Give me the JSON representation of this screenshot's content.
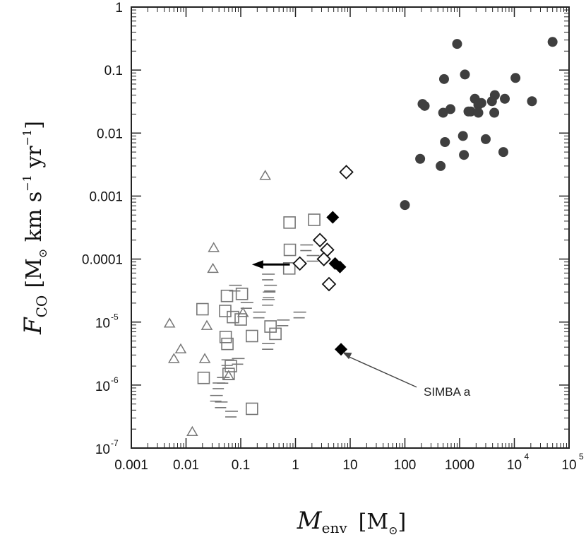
{
  "chart_data": {
    "type": "scatter",
    "title": "",
    "xscale": "log",
    "yscale": "log",
    "xlim": [
      0.001,
      100000
    ],
    "ylim": [
      1e-07,
      1
    ],
    "ylabel_parts": {
      "main": "F",
      "sub": "CO",
      "unit_open": "[M",
      "unit_sun": "⊙",
      "unit_rest": " km s",
      "exp1": "−1",
      "yr": " yr",
      "exp2": "−1",
      "close": "]"
    },
    "xlabel_parts": {
      "main": "M",
      "sub": "env",
      "unit_open": "[M",
      "unit_sun": "⊙",
      "close": "]"
    },
    "x_ticks": [
      {
        "v": 0.001,
        "label": "0.001",
        "sup": ""
      },
      {
        "v": 0.01,
        "label": "0.01",
        "sup": ""
      },
      {
        "v": 0.1,
        "label": "0.1",
        "sup": ""
      },
      {
        "v": 1,
        "label": "1",
        "sup": ""
      },
      {
        "v": 10,
        "label": "10",
        "sup": ""
      },
      {
        "v": 100,
        "label": "100",
        "sup": ""
      },
      {
        "v": 1000,
        "label": "1000",
        "sup": ""
      },
      {
        "v": 10000,
        "label": "10",
        "sup": "4"
      },
      {
        "v": 100000,
        "label": "10",
        "sup": "5"
      }
    ],
    "y_ticks": [
      {
        "v": 1e-07,
        "label": "10",
        "sup": "-7"
      },
      {
        "v": 1e-06,
        "label": "10",
        "sup": "-6"
      },
      {
        "v": 1e-05,
        "label": "10",
        "sup": "-5"
      },
      {
        "v": 0.0001,
        "label": "0.0001",
        "sup": ""
      },
      {
        "v": 0.001,
        "label": "0.001",
        "sup": ""
      },
      {
        "v": 0.01,
        "label": "0.01",
        "sup": ""
      },
      {
        "v": 0.1,
        "label": "0.1",
        "sup": ""
      },
      {
        "v": 1,
        "label": "1",
        "sup": ""
      }
    ],
    "series": [
      {
        "name": "filled circles",
        "marker": "circle-filled",
        "color": "#3f3f3f",
        "points": [
          [
            50000,
            0.28
          ],
          [
            900,
            0.26
          ],
          [
            1250,
            0.085
          ],
          [
            10500,
            0.075
          ],
          [
            520,
            0.072
          ],
          [
            1900,
            0.035
          ],
          [
            4400,
            0.04
          ],
          [
            6700,
            0.035
          ],
          [
            21000,
            0.032
          ],
          [
            2500,
            0.03
          ],
          [
            1600,
            0.022
          ],
          [
            2200,
            0.028
          ],
          [
            3900,
            0.032
          ],
          [
            230,
            0.027
          ],
          [
            210,
            0.029
          ],
          [
            500,
            0.021
          ],
          [
            680,
            0.024
          ],
          [
            1450,
            0.022
          ],
          [
            2200,
            0.021
          ],
          [
            4300,
            0.021
          ],
          [
            1150,
            0.009
          ],
          [
            3000,
            0.008
          ],
          [
            540,
            0.0072
          ],
          [
            1200,
            0.0045
          ],
          [
            450,
            0.003
          ],
          [
            190,
            0.0039
          ],
          [
            6300,
            0.005
          ],
          [
            100,
            0.00072
          ]
        ]
      },
      {
        "name": "open triangles",
        "marker": "triangle-open",
        "color": "#777777",
        "points": [
          [
            0.28,
            0.0021
          ],
          [
            0.032,
            0.00015
          ],
          [
            0.031,
            7e-05
          ],
          [
            0.005,
            9.5e-06
          ],
          [
            0.024,
            8.7e-06
          ],
          [
            0.008,
            3.7e-06
          ],
          [
            0.006,
            2.6e-06
          ],
          [
            0.022,
            2.6e-06
          ],
          [
            0.11,
            1.4e-05
          ],
          [
            0.013,
            1.8e-07
          ],
          [
            0.06,
            1.4e-06
          ]
        ]
      },
      {
        "name": "open squares",
        "marker": "square-open",
        "color": "#777777",
        "points": [
          [
            2.2,
            0.00042
          ],
          [
            0.78,
            0.00038
          ],
          [
            0.79,
            0.00014
          ],
          [
            0.77,
            7.1e-05
          ],
          [
            0.35,
            8.5e-06
          ],
          [
            0.43,
            6.5e-06
          ],
          [
            0.16,
            6e-06
          ],
          [
            0.072,
            1.2e-05
          ],
          [
            0.02,
            1.6e-05
          ],
          [
            0.06,
            1.5e-06
          ],
          [
            0.066,
            2e-06
          ],
          [
            0.021,
            1.3e-06
          ],
          [
            0.16,
            4.2e-07
          ],
          [
            0.1,
            1.1e-05
          ],
          [
            0.105,
            2.8e-05
          ],
          [
            0.056,
            2.6e-05
          ],
          [
            0.052,
            1.5e-05
          ],
          [
            0.053,
            5.8e-06
          ],
          [
            0.057,
            4.5e-06
          ]
        ]
      },
      {
        "name": "open diamonds",
        "marker": "diamond-open",
        "color": "#111111",
        "points": [
          [
            8.5,
            0.0024
          ],
          [
            2.8,
            0.0002
          ],
          [
            3.8,
            0.00014
          ],
          [
            3.3,
            0.0001
          ],
          [
            1.2,
            8.5e-05
          ],
          [
            4.1,
            4e-05
          ]
        ]
      },
      {
        "name": "filled diamonds",
        "marker": "diamond-filled",
        "color": "#000000",
        "points": [
          [
            4.8,
            0.00046
          ],
          [
            5.3,
            8.5e-05
          ],
          [
            6.5,
            7.5e-05
          ],
          [
            6.8,
            3.7e-06
          ]
        ]
      }
    ],
    "upper_limit_arrow": {
      "from": [
        1.0,
        8.2e-05
      ],
      "to": [
        0.16,
        8.2e-05
      ]
    },
    "annotations": [
      {
        "text": "SIMBA a",
        "text_at": [
          220,
          6.8e-07
        ],
        "arrow_to": [
          7.3,
          3.3e-06
        ]
      }
    ],
    "bracket_marks": {
      "color": "#777777",
      "points": [
        [
          1.6,
          0.00014
        ],
        [
          2.1,
          9.5e-05
        ],
        [
          0.32,
          4.8e-05
        ],
        [
          0.35,
          3.2e-05
        ],
        [
          0.33,
          2.5e-05
        ],
        [
          0.32,
          1.9e-05
        ],
        [
          0.22,
          1.2e-05
        ],
        [
          0.13,
          1.7e-05
        ],
        [
          0.6,
          9e-06
        ],
        [
          1.2,
          1.2e-05
        ],
        [
          0.32,
          3.8e-06
        ],
        [
          0.08,
          3.2e-05
        ],
        [
          0.09,
          2.2e-06
        ],
        [
          0.048,
          1.1e-06
        ],
        [
          0.04,
          9e-07
        ],
        [
          0.036,
          5.7e-07
        ],
        [
          0.068,
          3.2e-07
        ],
        [
          0.044,
          4.5e-07
        ],
        [
          0.058,
          2.1e-06
        ]
      ]
    }
  }
}
